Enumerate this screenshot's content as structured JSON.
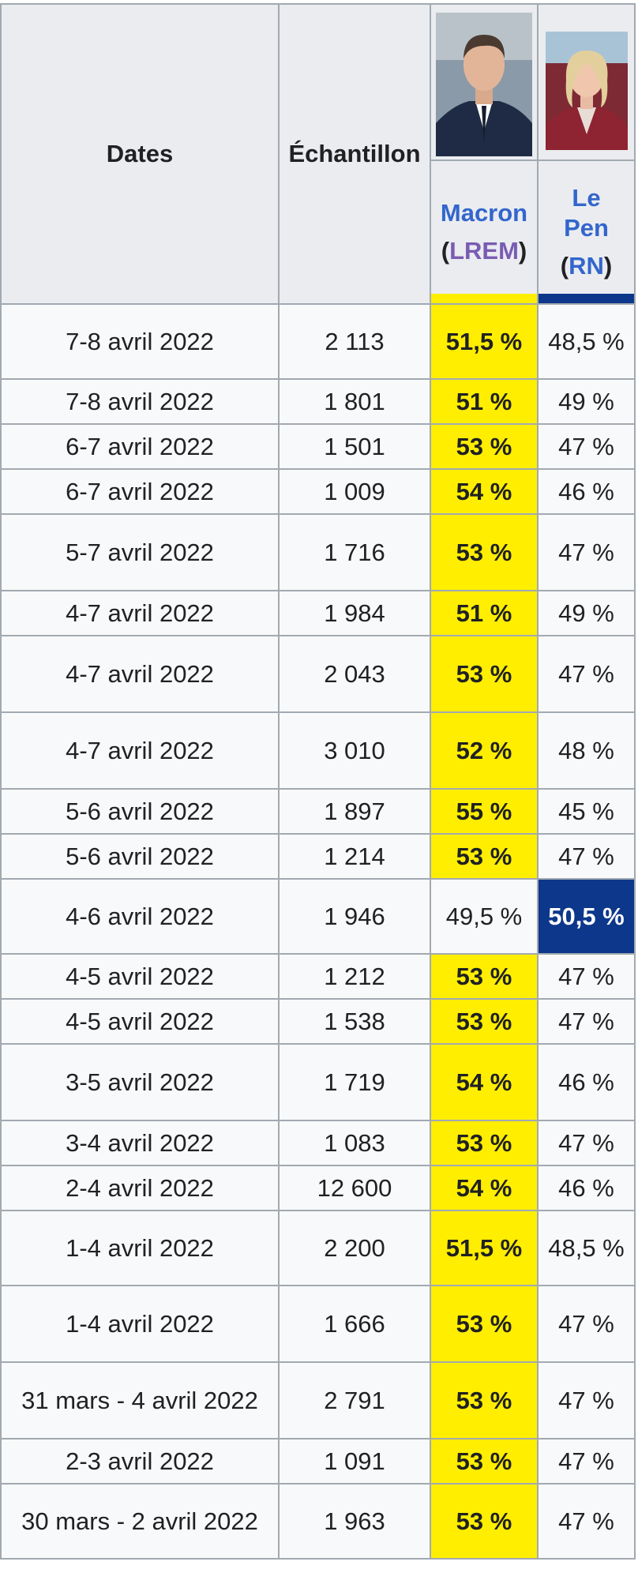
{
  "header": {
    "dates": "Dates",
    "sample": "Échantillon",
    "macron": {
      "name": "Macron",
      "party": "LREM",
      "open_paren": "(",
      "close_paren": ")",
      "color": "#ffee00"
    },
    "lepen": {
      "name_line1": "Le",
      "name_line2": "Pen",
      "party": "RN",
      "open_paren": "(",
      "close_paren": ")",
      "color": "#0d378a"
    }
  },
  "rows": [
    {
      "dates": "7-8 avril 2022",
      "sample": "2 113",
      "macron": "51,5 %",
      "lepen": "48,5 %",
      "winner": "macron"
    },
    {
      "dates": "7-8 avril 2022",
      "sample": "1 801",
      "macron": "51 %",
      "lepen": "49 %",
      "winner": "macron"
    },
    {
      "dates": "6-7 avril 2022",
      "sample": "1 501",
      "macron": "53 %",
      "lepen": "47 %",
      "winner": "macron"
    },
    {
      "dates": "6-7 avril 2022",
      "sample": "1 009",
      "macron": "54 %",
      "lepen": "46 %",
      "winner": "macron"
    },
    {
      "dates": "5-7 avril 2022",
      "sample": "1 716",
      "macron": "53 %",
      "lepen": "47 %",
      "winner": "macron"
    },
    {
      "dates": "4-7 avril 2022",
      "sample": "1 984",
      "macron": "51 %",
      "lepen": "49 %",
      "winner": "macron"
    },
    {
      "dates": "4-7 avril 2022",
      "sample": "2 043",
      "macron": "53 %",
      "lepen": "47 %",
      "winner": "macron"
    },
    {
      "dates": "4-7 avril 2022",
      "sample": "3 010",
      "macron": "52 %",
      "lepen": "48 %",
      "winner": "macron"
    },
    {
      "dates": "5-6 avril 2022",
      "sample": "1 897",
      "macron": "55 %",
      "lepen": "45 %",
      "winner": "macron"
    },
    {
      "dates": "5-6 avril 2022",
      "sample": "1 214",
      "macron": "53 %",
      "lepen": "47 %",
      "winner": "macron"
    },
    {
      "dates": "4-6 avril 2022",
      "sample": "1 946",
      "macron": "49,5 %",
      "lepen": "50,5 %",
      "winner": "lepen"
    },
    {
      "dates": "4-5 avril 2022",
      "sample": "1 212",
      "macron": "53 %",
      "lepen": "47 %",
      "winner": "macron"
    },
    {
      "dates": "4-5 avril 2022",
      "sample": "1 538",
      "macron": "53 %",
      "lepen": "47 %",
      "winner": "macron"
    },
    {
      "dates": "3-5 avril 2022",
      "sample": "1 719",
      "macron": "54 %",
      "lepen": "46 %",
      "winner": "macron"
    },
    {
      "dates": "3-4 avril 2022",
      "sample": "1 083",
      "macron": "53 %",
      "lepen": "47 %",
      "winner": "macron"
    },
    {
      "dates": "2-4 avril 2022",
      "sample": "12 600",
      "macron": "54 %",
      "lepen": "46 %",
      "winner": "macron"
    },
    {
      "dates": "1-4 avril 2022",
      "sample": "2 200",
      "macron": "51,5 %",
      "lepen": "48,5 %",
      "winner": "macron"
    },
    {
      "dates": "1-4 avril 2022",
      "sample": "1 666",
      "macron": "53 %",
      "lepen": "47 %",
      "winner": "macron"
    },
    {
      "dates": "31 mars - 4 avril 2022",
      "sample": "2 791",
      "macron": "53 %",
      "lepen": "47 %",
      "winner": "macron"
    },
    {
      "dates": "2-3 avril 2022",
      "sample": "1 091",
      "macron": "53 %",
      "lepen": "47 %",
      "winner": "macron"
    },
    {
      "dates": "30 mars - 2 avril 2022",
      "sample": "1 963",
      "macron": "53 %",
      "lepen": "47 %",
      "winner": "macron"
    }
  ]
}
